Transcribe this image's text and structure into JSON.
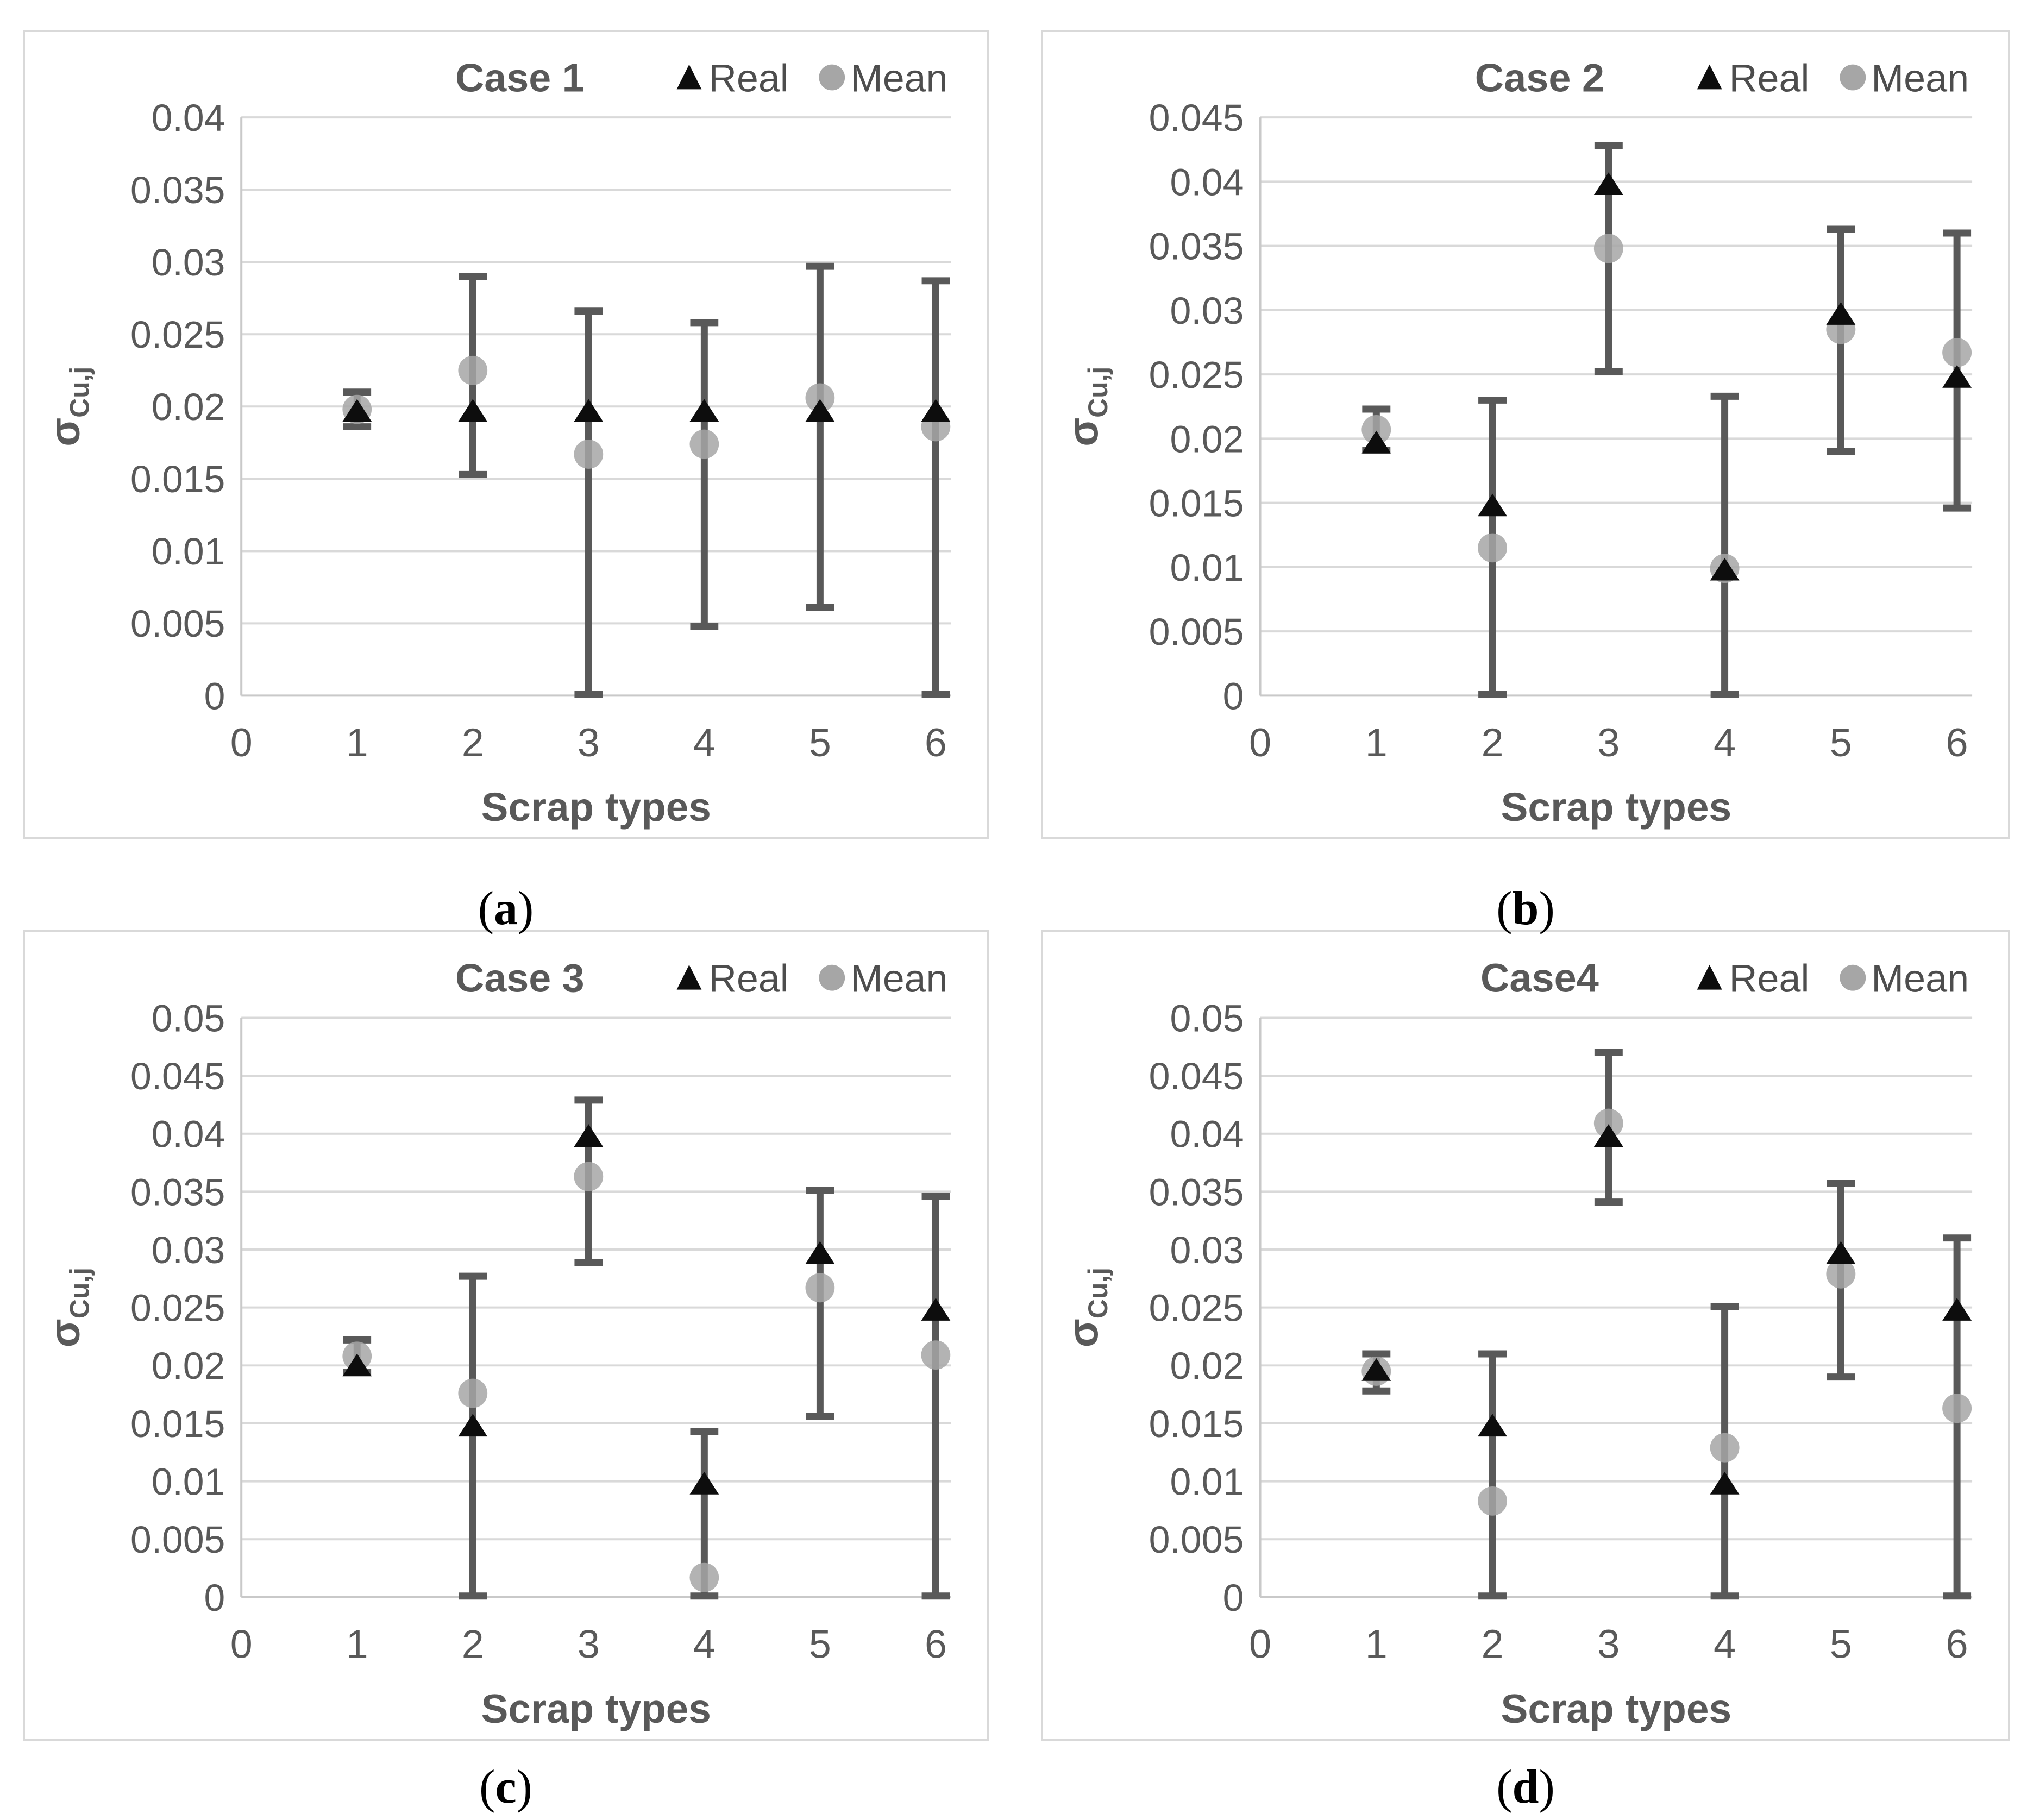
{
  "figure": {
    "x_axis_label": "Scrap types",
    "y_axis_sigma": "σ",
    "y_axis_subscript": "Cu,j",
    "legend": {
      "real_label": "Real",
      "mean_label": "Mean"
    },
    "captions": [
      {
        "pre": "(",
        "letter": "a",
        "post": ")"
      },
      {
        "pre": "(",
        "letter": "b",
        "post": ")"
      },
      {
        "pre": "(",
        "letter": "c",
        "post": ")"
      },
      {
        "pre": "(",
        "letter": "d",
        "post": ")"
      }
    ],
    "colors": {
      "grid": "#d9d9d9",
      "axis": "#c9c9c9",
      "error_bar": "#595959",
      "mean_fill": "#a6a6a6",
      "real_fill": "#0d0d0d",
      "text": "#595959",
      "legend_text": "#4d4d4d",
      "border": "#d9d9d9",
      "caption": "#000000"
    }
  },
  "chart_data": [
    {
      "type": "scatter",
      "panel": "a",
      "title": "Case 1",
      "xlabel": "Scrap types",
      "ylabel": "σCu,j",
      "xlim": [
        0,
        6
      ],
      "xticks": [
        0,
        1,
        2,
        3,
        4,
        5,
        6
      ],
      "ylim": [
        0,
        0.04
      ],
      "ystep": 0.005,
      "grid": "horizontal",
      "legend_position": "top-right",
      "categories": [
        1,
        2,
        3,
        4,
        5,
        6
      ],
      "series": [
        {
          "name": "Real",
          "marker": "triangle",
          "values": [
            0.0197,
            0.0197,
            0.0197,
            0.0197,
            0.0197,
            0.0197
          ]
        },
        {
          "name": "Mean",
          "marker": "circle",
          "values": [
            0.0198,
            0.0225,
            0.0167,
            0.0174,
            0.0206,
            0.0186
          ],
          "error_low": [
            0.0186,
            0.0153,
            0.0001,
            0.0048,
            0.0061,
            0.0001
          ],
          "error_high": [
            0.021,
            0.029,
            0.0266,
            0.0258,
            0.0297,
            0.0287
          ]
        }
      ]
    },
    {
      "type": "scatter",
      "panel": "b",
      "title": "Case 2",
      "xlabel": "Scrap types",
      "ylabel": "σCu,j",
      "xlim": [
        0,
        6
      ],
      "xticks": [
        0,
        1,
        2,
        3,
        4,
        5,
        6
      ],
      "ylim": [
        0,
        0.045
      ],
      "ystep": 0.005,
      "grid": "horizontal",
      "legend_position": "top-right",
      "categories": [
        1,
        2,
        3,
        4,
        5,
        6
      ],
      "series": [
        {
          "name": "Real",
          "marker": "triangle",
          "values": [
            0.0197,
            0.0148,
            0.0398,
            0.0098,
            0.0297,
            0.0248
          ]
        },
        {
          "name": "Mean",
          "marker": "circle",
          "values": [
            0.0207,
            0.0115,
            0.0348,
            0.0099,
            0.0285,
            0.0267
          ],
          "error_low": [
            0.0191,
            0.0001,
            0.0252,
            0.0001,
            0.019,
            0.0146
          ],
          "error_high": [
            0.0223,
            0.023,
            0.0428,
            0.0233,
            0.0363,
            0.036
          ]
        }
      ]
    },
    {
      "type": "scatter",
      "panel": "c",
      "title": "Case 3",
      "xlabel": "Scrap types",
      "ylabel": "σCu,j",
      "xlim": [
        0,
        6
      ],
      "xticks": [
        0,
        1,
        2,
        3,
        4,
        5,
        6
      ],
      "ylim": [
        0,
        0.05
      ],
      "ystep": 0.005,
      "grid": "horizontal",
      "legend_position": "top-right",
      "categories": [
        1,
        2,
        3,
        4,
        5,
        6
      ],
      "series": [
        {
          "name": "Real",
          "marker": "triangle",
          "values": [
            0.02,
            0.0148,
            0.0398,
            0.0098,
            0.0297,
            0.0248
          ]
        },
        {
          "name": "Mean",
          "marker": "circle",
          "values": [
            0.0208,
            0.0176,
            0.0363,
            0.0017,
            0.0267,
            0.0209
          ],
          "error_low": [
            0.0194,
            0.0001,
            0.0289,
            0.0001,
            0.0156,
            0.0001
          ],
          "error_high": [
            0.0222,
            0.0277,
            0.0429,
            0.0143,
            0.0351,
            0.0346
          ]
        }
      ]
    },
    {
      "type": "scatter",
      "panel": "d",
      "title": "Case4",
      "xlabel": "Scrap types",
      "ylabel": "σCu,j",
      "xlim": [
        0,
        6
      ],
      "xticks": [
        0,
        1,
        2,
        3,
        4,
        5,
        6
      ],
      "ylim": [
        0,
        0.05
      ],
      "ystep": 0.005,
      "grid": "horizontal",
      "legend_position": "top-right",
      "categories": [
        1,
        2,
        3,
        4,
        5,
        6
      ],
      "series": [
        {
          "name": "Real",
          "marker": "triangle",
          "values": [
            0.0196,
            0.0148,
            0.0398,
            0.0098,
            0.0297,
            0.0248
          ]
        },
        {
          "name": "Mean",
          "marker": "circle",
          "values": [
            0.0195,
            0.0083,
            0.0409,
            0.0129,
            0.0279,
            0.0163
          ],
          "error_low": [
            0.0178,
            0.0001,
            0.0341,
            0.0001,
            0.019,
            0.0001
          ],
          "error_high": [
            0.021,
            0.021,
            0.047,
            0.0251,
            0.0357,
            0.031
          ]
        }
      ]
    }
  ]
}
